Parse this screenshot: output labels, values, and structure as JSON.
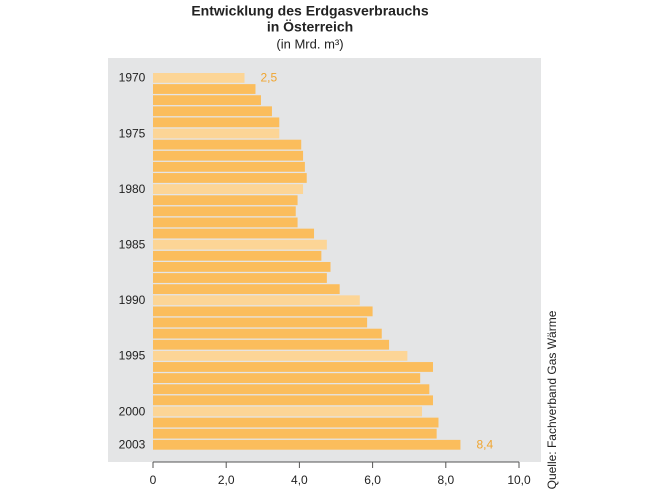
{
  "chart_data": {
    "type": "hbar",
    "title": "Entwicklung des Erdgasverbrauchs",
    "title_line2": "in Österreich",
    "subtitle": "(in Mrd. m³)",
    "source": "Quelle: Fachverband Gas Wärme",
    "categories": [
      "1970",
      null,
      null,
      null,
      null,
      "1975",
      null,
      null,
      null,
      null,
      "1980",
      null,
      null,
      null,
      null,
      "1985",
      null,
      null,
      null,
      null,
      "1990",
      null,
      null,
      null,
      null,
      "1995",
      null,
      null,
      null,
      null,
      "2000",
      null,
      null,
      "2003"
    ],
    "values": [
      2.5,
      2.8,
      2.95,
      3.25,
      3.45,
      3.45,
      4.05,
      4.1,
      4.15,
      4.2,
      4.1,
      3.95,
      3.9,
      3.95,
      4.4,
      4.75,
      4.6,
      4.85,
      4.75,
      5.1,
      5.65,
      6.0,
      5.85,
      6.25,
      6.45,
      6.95,
      7.65,
      7.3,
      7.55,
      7.65,
      7.35,
      7.8,
      7.75,
      8.4
    ],
    "value_labels": [
      "2,5",
      null,
      null,
      null,
      null,
      null,
      null,
      null,
      null,
      null,
      null,
      null,
      null,
      null,
      null,
      null,
      null,
      null,
      null,
      null,
      null,
      null,
      null,
      null,
      null,
      null,
      null,
      null,
      null,
      null,
      null,
      null,
      null,
      "8,4"
    ],
    "colors": [
      "#fcd596",
      "#fbbd5c",
      "#fbbd5c",
      "#fbbd5c",
      "#fbbd5c",
      "#fcd596",
      "#fbbd5c",
      "#fbbd5c",
      "#fbbd5c",
      "#fbbd5c",
      "#fcd596",
      "#fbbd5c",
      "#fbbd5c",
      "#fbbd5c",
      "#fbbd5c",
      "#fcd596",
      "#fbbd5c",
      "#fbbd5c",
      "#fbbd5c",
      "#fbbd5c",
      "#fcd596",
      "#fbbd5c",
      "#fbbd5c",
      "#fbbd5c",
      "#fbbd5c",
      "#fcd596",
      "#fbbd5c",
      "#fbbd5c",
      "#fbbd5c",
      "#fbbd5c",
      "#fcd596",
      "#fbbd5c",
      "#fbbd5c",
      "#fbbd5c"
    ],
    "label_color": "#f0a530",
    "xlim": [
      0,
      10
    ],
    "xticks": [
      0,
      {
        "value": 2,
        "label": "2,0"
      },
      {
        "value": 4,
        "label": "4,0"
      },
      {
        "value": 6,
        "label": "6,0"
      },
      {
        "value": 8,
        "label": "8,0"
      },
      {
        "value": 10,
        "label": "10,0"
      }
    ]
  }
}
